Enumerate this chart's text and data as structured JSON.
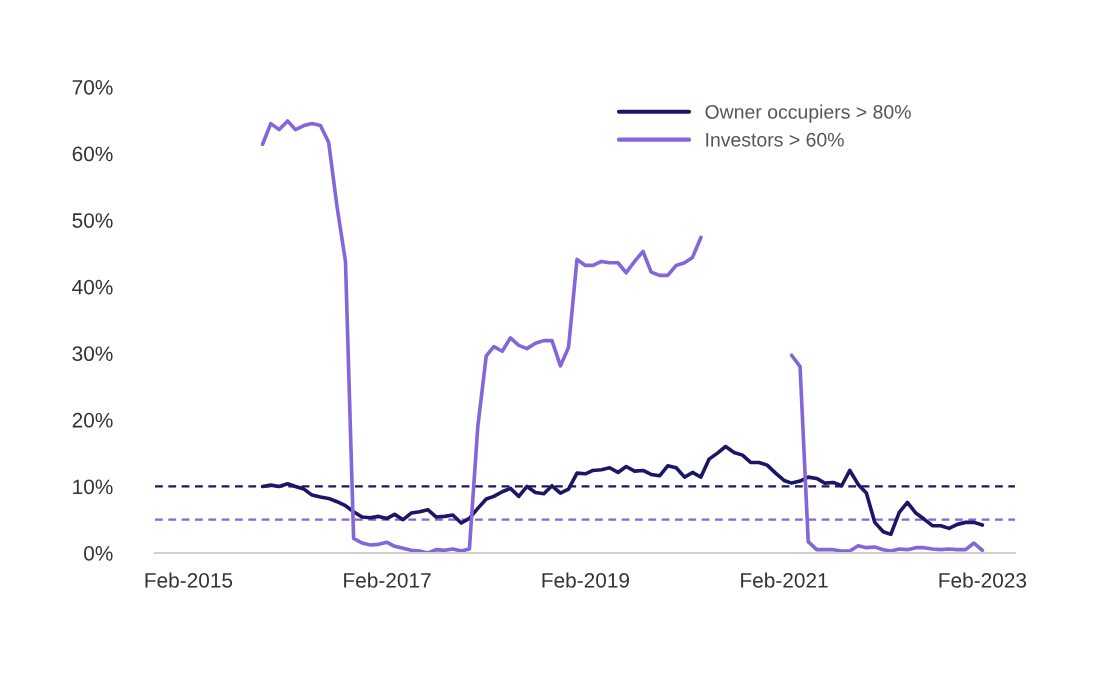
{
  "chart_data": {
    "type": "line",
    "x": [
      "2015-11",
      "2015-12",
      "2016-01",
      "2016-02",
      "2016-03",
      "2016-04",
      "2016-05",
      "2016-06",
      "2016-07",
      "2016-08",
      "2016-09",
      "2016-10",
      "2016-11",
      "2016-12",
      "2017-01",
      "2017-02",
      "2017-03",
      "2017-04",
      "2017-05",
      "2017-06",
      "2017-07",
      "2017-08",
      "2017-09",
      "2017-10",
      "2017-11",
      "2017-12",
      "2018-01",
      "2018-02",
      "2018-03",
      "2018-04",
      "2018-05",
      "2018-06",
      "2018-07",
      "2018-08",
      "2018-09",
      "2018-10",
      "2018-11",
      "2018-12",
      "2019-01",
      "2019-02",
      "2019-03",
      "2019-04",
      "2019-05",
      "2019-06",
      "2019-07",
      "2019-08",
      "2019-09",
      "2019-10",
      "2019-11",
      "2019-12",
      "2020-01",
      "2020-02",
      "2020-03",
      "2020-04",
      "2020-05",
      "2020-06",
      "2020-07",
      "2020-08",
      "2020-09",
      "2020-10",
      "2020-11",
      "2020-12",
      "2021-01",
      "2021-02",
      "2021-03",
      "2021-04",
      "2021-05",
      "2021-06",
      "2021-07",
      "2021-08",
      "2021-09",
      "2021-10",
      "2021-11",
      "2021-12",
      "2022-01",
      "2022-02",
      "2022-03",
      "2022-04",
      "2022-05",
      "2022-06",
      "2022-07",
      "2022-08",
      "2022-09",
      "2022-10",
      "2022-11",
      "2022-12",
      "2023-01",
      "2023-02"
    ],
    "series": [
      {
        "name": "Owner occupiers > 80%",
        "color": "#1b1766",
        "values": [
          10.0,
          10.2,
          10.0,
          10.4,
          10.0,
          9.6,
          8.7,
          8.4,
          8.2,
          7.7,
          7.1,
          6.2,
          5.4,
          5.3,
          5.5,
          5.2,
          5.8,
          5.0,
          6.0,
          6.2,
          6.5,
          5.4,
          5.5,
          5.7,
          4.5,
          5.2,
          6.7,
          8.1,
          8.5,
          9.2,
          9.7,
          8.5,
          10.0,
          9.1,
          8.9,
          10.1,
          9.0,
          9.6,
          12.0,
          11.9,
          12.4,
          12.5,
          12.8,
          12.1,
          13.0,
          12.3,
          12.4,
          11.8,
          11.6,
          13.1,
          12.8,
          11.4,
          12.1,
          11.4,
          14.1,
          15.0,
          16.0,
          15.1,
          14.7,
          13.6,
          13.6,
          13.2,
          12.0,
          10.9,
          10.5,
          10.8,
          11.4,
          11.2,
          10.5,
          10.6,
          10.1,
          12.4,
          10.3,
          9.0,
          4.6,
          3.2,
          2.8,
          6.1,
          7.6,
          6.0,
          5.1,
          4.1,
          4.1,
          3.7,
          4.3,
          4.6,
          4.6,
          4.2
        ]
      },
      {
        "name": "Investors > 60%",
        "color": "#8366d8",
        "values": [
          61.4,
          64.5,
          63.6,
          64.9,
          63.6,
          64.2,
          64.5,
          64.2,
          61.7,
          52.0,
          43.8,
          2.2,
          1.5,
          1.2,
          1.3,
          1.6,
          1.0,
          0.7,
          0.4,
          0.3,
          0.0,
          0.5,
          0.4,
          0.6,
          0.3,
          0.6,
          19.0,
          29.6,
          31.0,
          30.3,
          32.3,
          31.2,
          30.7,
          31.5,
          31.9,
          31.9,
          28.1,
          30.9,
          44.1,
          43.2,
          43.2,
          43.8,
          43.6,
          43.6,
          42.1,
          43.8,
          45.3,
          42.2,
          41.7,
          41.7,
          43.2,
          43.6,
          44.4,
          47.4,
          null,
          null,
          null,
          null,
          null,
          null,
          null,
          null,
          null,
          null,
          29.7,
          28.0,
          1.7,
          0.5,
          0.5,
          0.5,
          0.3,
          0.3,
          1.1,
          0.8,
          0.9,
          0.5,
          0.3,
          0.6,
          0.5,
          0.8,
          0.8,
          0.6,
          0.5,
          0.6,
          0.5,
          0.5,
          1.5,
          0.4
        ]
      }
    ],
    "xlim": [
      "2014-10",
      "2023-06"
    ],
    "xticks": [
      {
        "value": "2015-02",
        "label": "Feb-2015"
      },
      {
        "value": "2017-02",
        "label": "Feb-2017"
      },
      {
        "value": "2019-02",
        "label": "Feb-2019"
      },
      {
        "value": "2021-02",
        "label": "Feb-2021"
      },
      {
        "value": "2023-02",
        "label": "Feb-2023"
      }
    ],
    "ylim": [
      0,
      70
    ],
    "yticks": [
      {
        "value": 0,
        "label": "0%"
      },
      {
        "value": 10,
        "label": "10%"
      },
      {
        "value": 20,
        "label": "20%"
      },
      {
        "value": 30,
        "label": "30%"
      },
      {
        "value": 40,
        "label": "40%"
      },
      {
        "value": 50,
        "label": "50%"
      },
      {
        "value": 60,
        "label": "60%"
      },
      {
        "value": 70,
        "label": "70%"
      }
    ],
    "ref_lines": [
      {
        "axis": "y",
        "value": 10,
        "color": "#1b1766",
        "line_style": "dashed"
      },
      {
        "axis": "y",
        "value": 5,
        "color": "#8366d8",
        "line_style": "dashed"
      }
    ],
    "grid": false,
    "legend": "top right",
    "marker": "none",
    "line_style": "solid"
  }
}
